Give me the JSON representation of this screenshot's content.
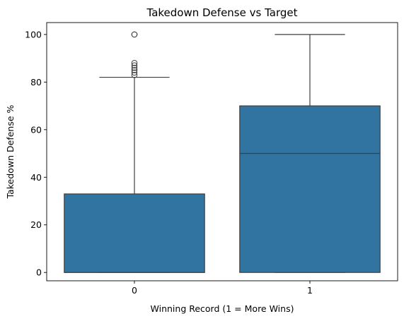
{
  "chart_data": {
    "type": "box",
    "title": "Takedown Defense vs Target",
    "xlabel": "Winning Record (1 = More Wins)",
    "ylabel": "Takedown Defense %",
    "categories": [
      "0",
      "1"
    ],
    "ylim": [
      -3.5,
      105
    ],
    "yticks": [
      0,
      20,
      40,
      60,
      80,
      100
    ],
    "grid": false,
    "box_color": "#3274a1",
    "line_color": "#3f3f3f",
    "boxes": [
      {
        "category": "0",
        "whisker_low": 0,
        "q1": 0,
        "median": 0,
        "q3": 33,
        "whisker_high": 82,
        "outliers": [
          83,
          84,
          85,
          86,
          87,
          88,
          100,
          100
        ]
      },
      {
        "category": "1",
        "whisker_low": 0,
        "q1": 0,
        "median": 50,
        "q3": 70,
        "whisker_high": 100,
        "outliers": []
      }
    ]
  }
}
